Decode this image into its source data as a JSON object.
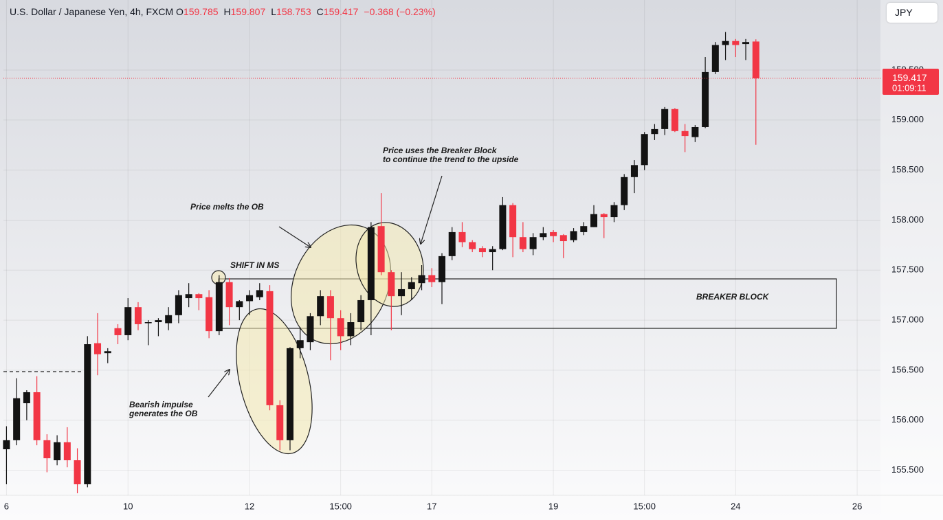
{
  "chart_data": {
    "type": "candlestick",
    "header": {
      "symbol": "U.S. Dollar / Japanese Yen, 4h, FXCM",
      "ohlc": [
        {
          "key": "O",
          "value": "159.785"
        },
        {
          "key": "H",
          "value": "159.807"
        },
        {
          "key": "L",
          "value": "158.753"
        },
        {
          "key": "C",
          "value": "159.417"
        }
      ],
      "change": "−0.368 (−0.23%)"
    },
    "currency_button": "JPY",
    "price_tag_countdown": "01:09:11",
    "up_color": "#131313",
    "down_color": "#f23645",
    "categories": [
      null,
      null,
      null,
      null,
      null,
      null,
      null,
      null,
      null,
      null,
      null,
      null,
      null,
      null,
      null,
      null,
      null,
      null,
      null,
      null,
      null,
      null,
      null,
      null,
      null,
      null,
      null,
      null,
      null,
      null,
      null,
      null,
      null,
      null,
      null,
      null,
      null,
      null,
      null,
      null,
      null,
      null,
      null,
      null,
      null,
      null,
      null,
      null,
      null,
      null,
      null,
      null,
      null,
      null,
      null,
      null,
      null,
      null,
      null,
      null,
      null,
      null,
      null,
      null,
      null,
      null,
      null,
      null,
      null,
      null,
      null,
      null,
      null,
      null,
      null
    ],
    "open": [
      155.71,
      155.8,
      156.17,
      156.28,
      155.8,
      155.6,
      155.78,
      155.6,
      155.36,
      156.77,
      156.67,
      156.92,
      156.85,
      157.13,
      156.97,
      156.98,
      156.97,
      157.05,
      157.22,
      157.26,
      157.23,
      156.89,
      157.38,
      157.13,
      157.19,
      157.23,
      157.29,
      156.15,
      155.8,
      156.72,
      156.78,
      157.04,
      157.24,
      157.02,
      156.84,
      156.98,
      157.2,
      157.94,
      157.48,
      157.24,
      157.31,
      157.37,
      157.45,
      157.38,
      157.64,
      157.88,
      157.78,
      157.72,
      157.68,
      157.71,
      158.15,
      157.83,
      157.71,
      157.83,
      157.88,
      157.85,
      157.8,
      157.88,
      157.93,
      158.06,
      158.03,
      158.15,
      158.43,
      158.55,
      158.86,
      158.91,
      159.11,
      158.89,
      158.83,
      158.93,
      159.48,
      159.75,
      159.79,
      159.76,
      159.785
    ],
    "high": [
      155.94,
      156.42,
      156.3,
      156.44,
      155.86,
      155.85,
      155.93,
      155.72,
      156.84,
      157.07,
      156.72,
      156.96,
      157.22,
      157.18,
      157.0,
      157.02,
      157.13,
      157.3,
      157.37,
      157.27,
      157.3,
      157.45,
      157.42,
      157.2,
      157.3,
      157.37,
      157.35,
      156.2,
      156.73,
      156.93,
      157.07,
      157.3,
      157.3,
      157.1,
      157.07,
      157.25,
      157.98,
      158.27,
      157.5,
      157.48,
      157.43,
      157.55,
      157.52,
      157.67,
      157.93,
      157.98,
      157.8,
      157.74,
      157.74,
      158.23,
      158.17,
      157.98,
      157.87,
      157.93,
      157.9,
      157.86,
      157.92,
      157.98,
      158.15,
      158.07,
      158.18,
      158.46,
      158.6,
      158.88,
      158.96,
      159.13,
      159.12,
      158.96,
      158.95,
      159.63,
      159.78,
      159.88,
      159.81,
      159.81,
      159.807
    ],
    "low": [
      155.36,
      155.75,
      156.0,
      155.75,
      155.48,
      155.55,
      155.53,
      155.27,
      155.33,
      156.45,
      156.57,
      156.76,
      156.8,
      156.9,
      156.75,
      156.84,
      156.9,
      156.97,
      157.13,
      157.1,
      156.82,
      156.85,
      156.95,
      157.0,
      157.05,
      157.2,
      156.1,
      155.7,
      155.7,
      156.62,
      156.7,
      156.95,
      156.6,
      156.7,
      156.75,
      156.9,
      156.85,
      157.45,
      156.9,
      157.05,
      157.2,
      157.3,
      157.33,
      157.16,
      157.6,
      157.73,
      157.68,
      157.63,
      157.5,
      157.7,
      157.63,
      157.68,
      157.65,
      157.8,
      157.78,
      157.62,
      157.78,
      157.85,
      157.93,
      157.82,
      157.98,
      158.1,
      158.27,
      158.5,
      158.8,
      158.85,
      158.88,
      158.68,
      158.78,
      158.92,
      159.46,
      159.6,
      159.63,
      159.6,
      158.753
    ],
    "close": [
      155.8,
      156.22,
      156.28,
      155.8,
      155.62,
      155.78,
      155.6,
      155.36,
      156.76,
      156.66,
      156.69,
      156.85,
      157.13,
      156.96,
      156.98,
      157.0,
      157.05,
      157.25,
      157.26,
      157.22,
      156.89,
      157.38,
      157.13,
      157.19,
      157.25,
      157.3,
      156.15,
      155.8,
      156.72,
      156.8,
      157.04,
      157.24,
      157.02,
      156.84,
      156.98,
      157.2,
      157.93,
      157.48,
      157.24,
      157.31,
      157.38,
      157.45,
      157.38,
      157.64,
      157.88,
      157.78,
      157.71,
      157.68,
      157.71,
      158.15,
      157.83,
      157.71,
      157.83,
      157.87,
      157.84,
      157.79,
      157.89,
      157.94,
      158.06,
      158.03,
      158.15,
      158.43,
      158.55,
      158.86,
      158.91,
      159.11,
      158.89,
      158.84,
      158.93,
      159.48,
      159.75,
      159.79,
      159.75,
      159.78,
      159.417
    ],
    "xlim": [
      -0.3,
      86.3
    ],
    "xticks": [
      {
        "value": 0,
        "label": "6"
      },
      {
        "value": 12,
        "label": "10"
      },
      {
        "value": 24,
        "label": "12"
      },
      {
        "value": 33,
        "label": "15:00"
      },
      {
        "value": 42,
        "label": "17"
      },
      {
        "value": 54,
        "label": "19"
      },
      {
        "value": 63,
        "label": "15:00"
      },
      {
        "value": 72,
        "label": "24"
      },
      {
        "value": 84,
        "label": "26"
      }
    ],
    "ylim": [
      155.25,
      160.2
    ],
    "yticks": [
      {
        "value": 155.5,
        "label": "155.500"
      },
      {
        "value": 156,
        "label": "156.000"
      },
      {
        "value": 156.5,
        "label": "156.500"
      },
      {
        "value": 157,
        "label": "157.000"
      },
      {
        "value": 157.5,
        "label": "157.500"
      },
      {
        "value": 158,
        "label": "158.000"
      },
      {
        "value": 158.5,
        "label": "158.500"
      },
      {
        "value": 159,
        "label": "159.000"
      },
      {
        "value": 159.5,
        "label": "159.500"
      }
    ],
    "grid": true,
    "annotations": [
      [
        "SHIFT IN MS"
      ],
      [
        "Price melts the OB"
      ],
      [
        "Price uses the Breaker Block",
        "to continue the trend to the upside"
      ],
      [
        "Bearish impulse",
        "generates the OB"
      ],
      [
        "BREAKER BLOCK"
      ]
    ]
  }
}
